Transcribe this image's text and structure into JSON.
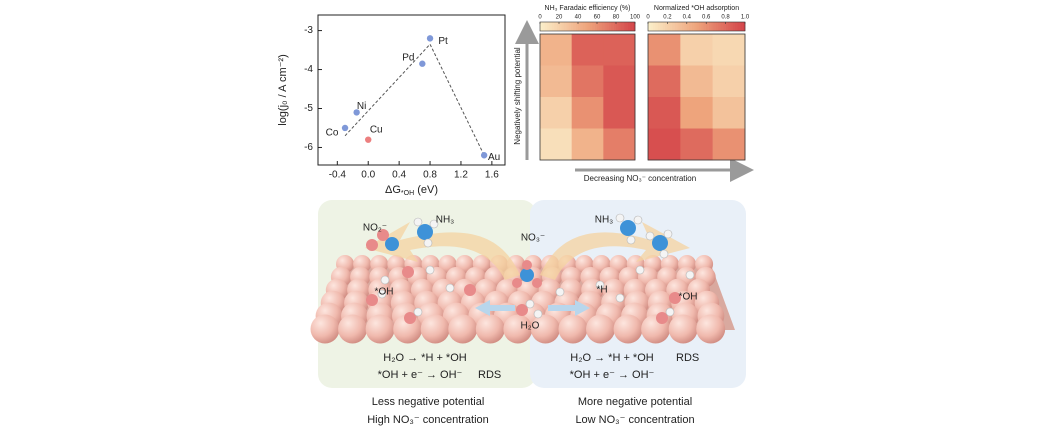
{
  "chart_data": [
    {
      "type": "scatter",
      "xlabel": {
        "main": "ΔG",
        "sub": "*OH",
        "rest": " (eV)"
      },
      "ylabel": "log(j₀ / A cm⁻²)",
      "xlim": [
        -0.65,
        1.77
      ],
      "ylim": [
        -6.45,
        -2.6
      ],
      "xticks": [
        -0.4,
        {
          "value": 0,
          "label": "0.0"
        },
        0.4,
        0.8,
        1.2,
        1.6
      ],
      "yticks": [
        -3,
        -4,
        -5,
        -6
      ],
      "points": [
        {
          "label": "Co",
          "x": -0.3,
          "y": -5.5,
          "color": "#7f98d8"
        },
        {
          "label": "Ni",
          "x": -0.15,
          "y": -5.1,
          "color": "#7f98d8"
        },
        {
          "label": "Cu",
          "x": 0.0,
          "y": -5.8,
          "color": "#ec7f7f"
        },
        {
          "label": "Pd",
          "x": 0.7,
          "y": -3.85,
          "color": "#7f98d8"
        },
        {
          "label": "Pt",
          "x": 0.8,
          "y": -3.2,
          "color": "#7f98d8"
        },
        {
          "label": "Au",
          "x": 1.5,
          "y": -6.2,
          "color": "#7f98d8"
        }
      ],
      "trend": {
        "x": [
          -0.3,
          0.8,
          1.5
        ],
        "y": [
          -5.7,
          -3.35,
          -6.2
        ]
      }
    },
    {
      "type": "heatmap",
      "colorbar_label": "NH₃ Faradaic efficiency (%)",
      "clim": [
        0,
        100
      ],
      "cticks": [
        0,
        20,
        40,
        60,
        80,
        100
      ],
      "values": [
        [
          40,
          85,
          85
        ],
        [
          35,
          75,
          90
        ],
        [
          20,
          60,
          90
        ],
        [
          10,
          40,
          70
        ]
      ]
    },
    {
      "type": "heatmap",
      "colorbar_label": "Normalized *OH adsorption",
      "clim": [
        0,
        1
      ],
      "cticks": [
        0,
        0.2,
        0.4,
        0.6,
        0.8,
        {
          "value": 1,
          "label": "1.0"
        }
      ],
      "values": [
        [
          0.6,
          0.2,
          0.15
        ],
        [
          0.8,
          0.35,
          0.2
        ],
        [
          0.9,
          0.5,
          0.3
        ],
        [
          0.95,
          0.8,
          0.6
        ]
      ]
    }
  ],
  "annotations": {
    "vertical_arrow": "Negatively shifting potential",
    "horizontal_arrow": "Decreasing NO₃⁻ concentration"
  },
  "illustration": {
    "species": {
      "no2": "NO₂⁻",
      "nh3_left": "NH₃",
      "no3": "NO₃⁻",
      "nh3_right": "NH₃",
      "oh_left": "*OH",
      "oh_right": "*OH",
      "h": "*H",
      "h2o": "H₂O"
    },
    "left": {
      "eq1": "H₂O → *H + *OH",
      "eq2": "*OH + e⁻ → OH⁻",
      "rds": "RDS",
      "caption1": "Less negative potential",
      "caption2": "High NO₃⁻ concentration"
    },
    "right": {
      "eq1": "H₂O → *H + *OH",
      "rds": "RDS",
      "eq2": "*OH + e⁻ → OH⁻",
      "caption1": "More negative potential",
      "caption2": "Low NO₃⁻ concentration"
    }
  }
}
